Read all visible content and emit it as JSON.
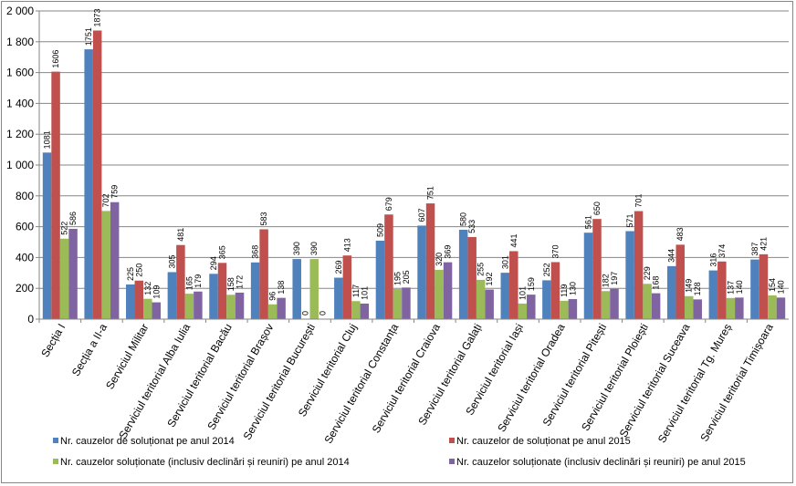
{
  "chart_data": {
    "type": "bar",
    "categories": [
      "Secția I",
      "Secția a II-a",
      "Serviciul Militar",
      "Serviciul teritorial Alba Iulia",
      "Serviciul teritorial Bacău",
      "Serviciul teritorial Brașov",
      "Serviciul teritorial București",
      "Serviciul teritorial Cluj",
      "Serviciul teritorial Constanța",
      "Serviciul teritorial Craiova",
      "Serviciul teritorial Galați",
      "Serviciul teritorial Iași",
      "Serviciul teritorial Oradea",
      "Serviciul teritorial Pitești",
      "Serviciul teritorial Ploiești",
      "Serviciul teritorial Suceava",
      "Serviciul teritorial Tg. Mureș",
      "Serviciul teritorial Timișoara"
    ],
    "series": [
      {
        "name": "Nr. cauzelor de soluționat pe anul 2014",
        "color": "#4f81bd",
        "values": [
          1081,
          1751,
          225,
          305,
          294,
          368,
          390,
          269,
          509,
          607,
          580,
          301,
          252,
          561,
          571,
          344,
          316,
          387
        ]
      },
      {
        "name": "Nr. cauzelor de soluționat pe anul 2015",
        "color": "#c0504d",
        "values": [
          1606,
          1873,
          250,
          481,
          365,
          583,
          0,
          413,
          679,
          751,
          533,
          441,
          370,
          650,
          701,
          483,
          374,
          421
        ]
      },
      {
        "name": "Nr. cauzelor soluționate (inclusiv declinări și reuniri) pe anul 2014",
        "color": "#9bbb59",
        "values": [
          522,
          702,
          132,
          165,
          158,
          96,
          390,
          117,
          195,
          320,
          255,
          101,
          119,
          182,
          229,
          149,
          137,
          154
        ]
      },
      {
        "name": "Nr. cauzelor soluționate (inclusiv declinări și reuniri) pe anul 2015",
        "color": "#8064a2",
        "values": [
          586,
          759,
          109,
          179,
          172,
          138,
          0,
          101,
          205,
          369,
          192,
          159,
          130,
          197,
          168,
          128,
          140,
          140
        ]
      }
    ],
    "ylim": [
      0,
      2000
    ],
    "yticks": [
      0,
      200,
      400,
      600,
      800,
      1000,
      1200,
      1400,
      1600,
      1800,
      2000
    ],
    "ytick_labels": [
      "0",
      "200",
      "400",
      "600",
      "800",
      "1 000",
      "1 200",
      "1 400",
      "1 600",
      "1 800",
      "2 000"
    ],
    "grid": true,
    "legend_position": "bottom",
    "data_labels": true
  }
}
